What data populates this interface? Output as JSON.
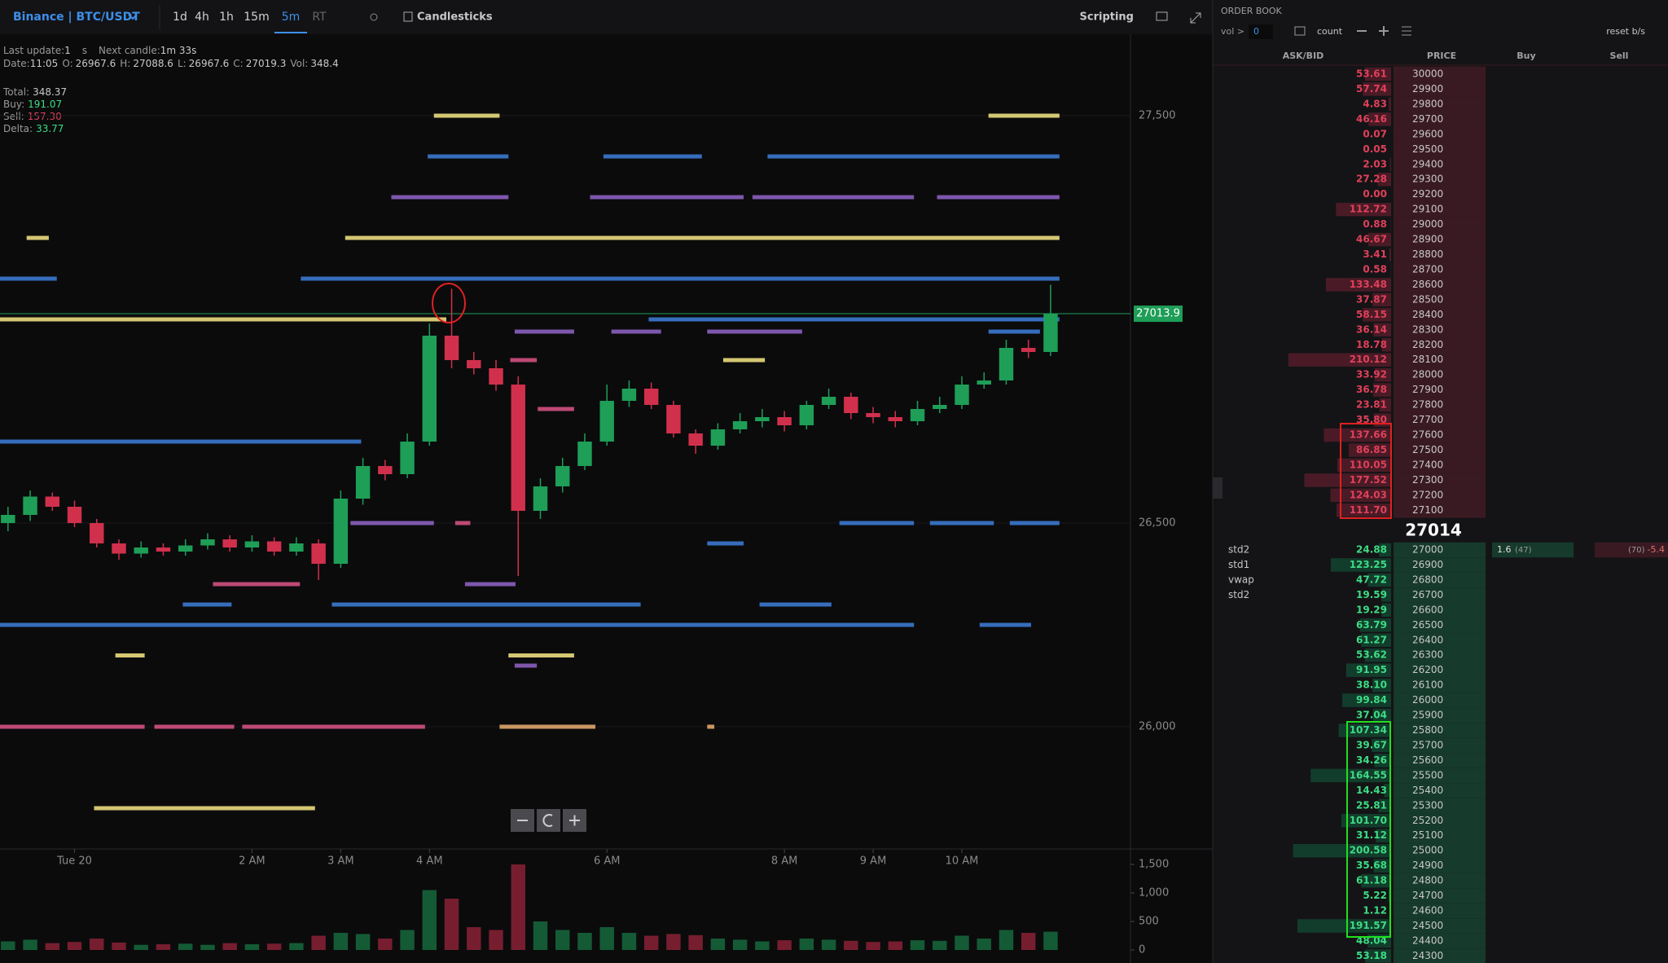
{
  "toolbar": {
    "symbol": "Binance | BTC/USDT",
    "timeframes": [
      "1d",
      "4h",
      "1h",
      "15m",
      "5m",
      "RT"
    ],
    "active_index": 4,
    "chart_type": "Candlesticks",
    "scripting": "Scripting"
  },
  "info": {
    "last_update_label": "Last update:",
    "last_update": "1",
    "last_update_unit": "s",
    "next_candle_label": "Next candle:",
    "next_candle": "1m 33s",
    "date_label": "Date:",
    "date": "11:05",
    "o_label": "O:",
    "o": "26967.6",
    "h_label": "H:",
    "h": "27088.6",
    "l_label": "L:",
    "l": "26967.6",
    "c_label": "C:",
    "c": "27019.3",
    "vol_label": "Vol:",
    "vol": "348.4",
    "total_label": "Total:",
    "total": "348.37",
    "buy_label": "Buy:",
    "buy": "191.07",
    "sell_label": "Sell:",
    "sell": "157.30",
    "delta_label": "Delta:",
    "delta": "33.77"
  },
  "chart_data": {
    "type": "candlestick",
    "up_color": "#1e9e57",
    "down_color": "#d0304c",
    "x": [
      -0.75,
      -0.5,
      -0.25,
      0,
      0.25,
      0.5,
      0.75,
      1,
      1.25,
      1.5,
      1.75,
      2,
      2.25,
      2.5,
      2.75,
      3,
      3.25,
      3.5,
      3.75,
      4,
      4.25,
      4.5,
      4.75,
      5,
      5.25,
      5.5,
      5.75,
      6,
      6.25,
      6.5,
      6.75,
      7,
      7.25,
      7.5,
      7.75,
      8,
      8.25,
      8.5,
      8.75,
      9,
      9.25,
      9.5,
      9.75,
      10,
      10.25,
      10.5,
      10.75,
      11
    ],
    "open": [
      26500,
      26520,
      26565,
      26540,
      26500,
      26450,
      26425,
      26440,
      26430,
      26445,
      26460,
      26440,
      26455,
      26430,
      26450,
      26400,
      26560,
      26640,
      26620,
      26700,
      26960,
      26900,
      26880,
      26840,
      26530,
      26590,
      26640,
      26700,
      26800,
      26830,
      26790,
      26720,
      26690,
      26730,
      26750,
      26760,
      26740,
      26790,
      26810,
      26770,
      26760,
      26750,
      26780,
      26790,
      26840,
      26850,
      26930,
      26920
    ],
    "high": [
      26540,
      26580,
      26575,
      26555,
      26510,
      26460,
      26455,
      26450,
      26460,
      26475,
      26470,
      26470,
      26465,
      26465,
      26460,
      26580,
      26660,
      26655,
      26720,
      26990,
      27075,
      26920,
      26900,
      26860,
      26610,
      26660,
      26720,
      26840,
      26850,
      26845,
      26800,
      26730,
      26745,
      26770,
      26780,
      26775,
      26800,
      26830,
      26820,
      26785,
      26775,
      26800,
      26810,
      26860,
      26870,
      26950,
      26950,
      27085
    ],
    "low": [
      26480,
      26505,
      26530,
      26490,
      26440,
      26410,
      26415,
      26420,
      26420,
      26435,
      26430,
      26430,
      26420,
      26420,
      26360,
      26390,
      26545,
      26605,
      26610,
      26690,
      26880,
      26865,
      26825,
      26370,
      26510,
      26575,
      26630,
      26690,
      26785,
      26780,
      26710,
      26670,
      26680,
      26720,
      26735,
      26725,
      26730,
      26780,
      26755,
      26745,
      26735,
      26740,
      26770,
      26780,
      26830,
      26840,
      26905,
      26910
    ],
    "close": [
      26520,
      26565,
      26540,
      26500,
      26450,
      26425,
      26440,
      26430,
      26445,
      26460,
      26440,
      26455,
      26430,
      26450,
      26400,
      26560,
      26640,
      26620,
      26700,
      26960,
      26900,
      26880,
      26840,
      26530,
      26590,
      26640,
      26700,
      26800,
      26830,
      26790,
      26720,
      26690,
      26730,
      26750,
      26760,
      26740,
      26790,
      26810,
      26770,
      26760,
      26750,
      26780,
      26790,
      26840,
      26850,
      26930,
      26920,
      27014
    ],
    "xlim": [
      -0.84,
      11.9
    ],
    "xticks": [
      {
        "value": 0,
        "label": "Tue 20"
      },
      {
        "value": 2,
        "label": "2 AM"
      },
      {
        "value": 3,
        "label": "3 AM"
      },
      {
        "value": 4,
        "label": "4 AM"
      },
      {
        "value": 6,
        "label": "6 AM"
      },
      {
        "value": 8,
        "label": "8 AM"
      },
      {
        "value": 9,
        "label": "9 AM"
      },
      {
        "value": 10,
        "label": "10 AM"
      }
    ],
    "ylim": [
      25700,
      27700
    ],
    "yticks": [
      {
        "value": 27500,
        "label": "27,500"
      },
      {
        "value": 26500,
        "label": "26,500"
      },
      {
        "value": 26000,
        "label": "26,000"
      }
    ],
    "last_price": 27013.9,
    "last_price_color": "#1e9e57",
    "heatmap": [
      {
        "price": 27500,
        "color": "#eadb7d",
        "segments": [
          [
            4.05,
            4.79
          ],
          [
            10.3,
            11.1
          ]
        ]
      },
      {
        "price": 27400,
        "color": "#3b78cf",
        "segments": [
          [
            3.98,
            4.89
          ],
          [
            5.96,
            7.07
          ],
          [
            7.81,
            11.1
          ]
        ]
      },
      {
        "price": 27300,
        "color": "#8b5fbf",
        "segments": [
          [
            3.57,
            4.89
          ],
          [
            5.81,
            7.54
          ],
          [
            7.64,
            9.46
          ],
          [
            9.72,
            11.1
          ]
        ]
      },
      {
        "price": 27200,
        "color": "#eadb7d",
        "segments": [
          [
            -0.54,
            -0.29
          ],
          [
            3.05,
            11.1
          ]
        ]
      },
      {
        "price": 27100,
        "color": "#3b78cf",
        "segments": [
          [
            -0.84,
            -0.2
          ],
          [
            2.55,
            11.1
          ]
        ]
      },
      {
        "price": 27000,
        "color": "#eadb7d",
        "segments": [
          [
            -0.84,
            4.19
          ]
        ]
      },
      {
        "price": 27000,
        "color": "#3b78cf",
        "segments": [
          [
            6.47,
            11.1
          ]
        ]
      },
      {
        "price": 26970,
        "color": "#8b5fbf",
        "segments": [
          [
            4.96,
            5.63
          ],
          [
            6.05,
            6.61
          ],
          [
            7.13,
            8.2
          ]
        ]
      },
      {
        "price": 26970,
        "color": "#3b78cf",
        "segments": [
          [
            10.3,
            10.88
          ]
        ]
      },
      {
        "price": 26900,
        "color": "#d0507f",
        "segments": [
          [
            4.91,
            5.21
          ]
        ]
      },
      {
        "price": 26900,
        "color": "#eadb7d",
        "segments": [
          [
            7.31,
            7.78
          ]
        ]
      },
      {
        "price": 26780,
        "color": "#d0507f",
        "segments": [
          [
            5.22,
            5.63
          ]
        ]
      },
      {
        "price": 26700,
        "color": "#3b78cf",
        "segments": [
          [
            -0.84,
            3.23
          ]
        ]
      },
      {
        "price": 26500,
        "color": "#8b5fbf",
        "segments": [
          [
            3.11,
            4.05
          ]
        ]
      },
      {
        "price": 26500,
        "color": "#d0507f",
        "segments": [
          [
            4.29,
            4.46
          ]
        ]
      },
      {
        "price": 26500,
        "color": "#3b78cf",
        "segments": [
          [
            8.62,
            9.46
          ],
          [
            9.64,
            10.36
          ],
          [
            10.54,
            11.1
          ]
        ]
      },
      {
        "price": 26450,
        "color": "#3b78cf",
        "segments": [
          [
            7.13,
            7.54
          ]
        ]
      },
      {
        "price": 26350,
        "color": "#d0507f",
        "segments": [
          [
            1.56,
            2.54
          ]
        ]
      },
      {
        "price": 26350,
        "color": "#8b5fbf",
        "segments": [
          [
            4.4,
            4.97
          ]
        ]
      },
      {
        "price": 26300,
        "color": "#3b78cf",
        "segments": [
          [
            1.22,
            1.77
          ],
          [
            2.9,
            6.38
          ],
          [
            7.72,
            8.53
          ]
        ]
      },
      {
        "price": 26250,
        "color": "#3b78cf",
        "segments": [
          [
            -0.84,
            9.46
          ],
          [
            10.2,
            10.78
          ]
        ]
      },
      {
        "price": 26175,
        "color": "#eadb7d",
        "segments": [
          [
            0.46,
            0.79
          ],
          [
            4.89,
            5.63
          ]
        ]
      },
      {
        "price": 26150,
        "color": "#8b5fbf",
        "segments": [
          [
            4.96,
            5.21
          ]
        ]
      },
      {
        "price": 26000,
        "color": "#d0507f",
        "segments": [
          [
            -0.84,
            0.79
          ],
          [
            0.9,
            1.8
          ],
          [
            1.89,
            3.95
          ]
        ]
      },
      {
        "price": 26000,
        "color": "#e0a46a",
        "segments": [
          [
            4.79,
            5.87
          ],
          [
            7.13,
            7.21
          ]
        ]
      },
      {
        "price": 25800,
        "color": "#eadb7d",
        "segments": [
          [
            0.22,
            2.71
          ]
        ]
      }
    ],
    "volume": {
      "values": [
        150,
        180,
        120,
        140,
        200,
        130,
        90,
        100,
        110,
        90,
        120,
        100,
        110,
        120,
        250,
        300,
        280,
        200,
        350,
        1050,
        900,
        400,
        350,
        1500,
        500,
        350,
        300,
        400,
        300,
        250,
        280,
        260,
        200,
        180,
        150,
        170,
        200,
        180,
        160,
        140,
        150,
        170,
        160,
        250,
        200,
        350,
        300,
        320
      ],
      "ylim": [
        0,
        1700
      ],
      "yticks": [
        0,
        500,
        {
          "value": 1000,
          "label": "1,000"
        },
        {
          "value": 1500,
          "label": "1,500"
        }
      ]
    }
  },
  "order_book": {
    "title": "ORDER BOOK",
    "vol_label": "vol >",
    "vol_value": "0",
    "count": "count",
    "reset": "reset b/s",
    "columns": [
      "ASK/BID",
      "PRICE",
      "Buy",
      "Sell"
    ],
    "mid": "27014",
    "asks": [
      {
        "size": "53.61",
        "price": "30000"
      },
      {
        "size": "57.74",
        "price": "29900"
      },
      {
        "size": "4.83",
        "price": "29800"
      },
      {
        "size": "46.16",
        "price": "29700"
      },
      {
        "size": "0.07",
        "price": "29600"
      },
      {
        "size": "0.05",
        "price": "29500"
      },
      {
        "size": "2.03",
        "price": "29400"
      },
      {
        "size": "27.28",
        "price": "29300"
      },
      {
        "size": "0.00",
        "price": "29200"
      },
      {
        "size": "112.72",
        "price": "29100"
      },
      {
        "size": "0.88",
        "price": "29000"
      },
      {
        "size": "46.67",
        "price": "28900"
      },
      {
        "size": "3.41",
        "price": "28800"
      },
      {
        "size": "0.58",
        "price": "28700"
      },
      {
        "size": "133.48",
        "price": "28600"
      },
      {
        "size": "37.87",
        "price": "28500"
      },
      {
        "size": "58.15",
        "price": "28400"
      },
      {
        "size": "36.14",
        "price": "28300"
      },
      {
        "size": "18.78",
        "price": "28200"
      },
      {
        "size": "210.12",
        "price": "28100"
      },
      {
        "size": "33.92",
        "price": "28000"
      },
      {
        "size": "36.78",
        "price": "27900"
      },
      {
        "size": "23.81",
        "price": "27800"
      },
      {
        "size": "35.80",
        "price": "27700"
      },
      {
        "size": "137.66",
        "price": "27600"
      },
      {
        "size": "86.85",
        "price": "27500"
      },
      {
        "size": "110.05",
        "price": "27400"
      },
      {
        "size": "177.52",
        "price": "27300"
      },
      {
        "size": "124.03",
        "price": "27200"
      },
      {
        "size": "111.70",
        "price": "27100"
      }
    ],
    "bids": [
      {
        "size": "24.88",
        "price": "27000"
      },
      {
        "size": "123.25",
        "price": "26900"
      },
      {
        "size": "47.72",
        "price": "26800"
      },
      {
        "size": "19.59",
        "price": "26700"
      },
      {
        "size": "19.29",
        "price": "26600"
      },
      {
        "size": "63.79",
        "price": "26500"
      },
      {
        "size": "61.27",
        "price": "26400"
      },
      {
        "size": "53.62",
        "price": "26300"
      },
      {
        "size": "91.95",
        "price": "26200"
      },
      {
        "size": "38.10",
        "price": "26100"
      },
      {
        "size": "99.84",
        "price": "26000"
      },
      {
        "size": "37.04",
        "price": "25900"
      },
      {
        "size": "107.34",
        "price": "25800"
      },
      {
        "size": "39.67",
        "price": "25700"
      },
      {
        "size": "34.26",
        "price": "25600"
      },
      {
        "size": "164.55",
        "price": "25500"
      },
      {
        "size": "14.43",
        "price": "25400"
      },
      {
        "size": "25.81",
        "price": "25300"
      },
      {
        "size": "101.70",
        "price": "25200"
      },
      {
        "size": "31.12",
        "price": "25100"
      },
      {
        "size": "200.58",
        "price": "25000"
      },
      {
        "size": "35.68",
        "price": "24900"
      },
      {
        "size": "61.18",
        "price": "24800"
      },
      {
        "size": "5.22",
        "price": "24700"
      },
      {
        "size": "1.12",
        "price": "24600"
      },
      {
        "size": "191.57",
        "price": "24500"
      },
      {
        "size": "48.04",
        "price": "24400"
      },
      {
        "size": "53.18",
        "price": "24300"
      }
    ],
    "bid_labels": [
      "std2",
      "std1",
      "vwap",
      "std2"
    ],
    "buy": [
      "1.6",
      "(47)"
    ],
    "sell": [
      "(70)",
      "-5.4"
    ]
  }
}
